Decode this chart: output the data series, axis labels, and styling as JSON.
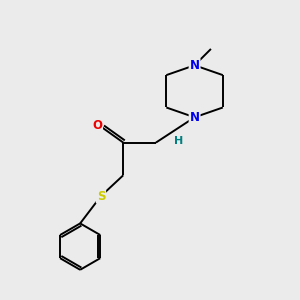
{
  "bg_color": "#ebebeb",
  "atom_colors": {
    "N": "#0000ee",
    "O": "#ee0000",
    "S": "#cccc00",
    "C": "#000000",
    "H": "#008080"
  },
  "bond_color": "#000000",
  "lw": 1.4
}
